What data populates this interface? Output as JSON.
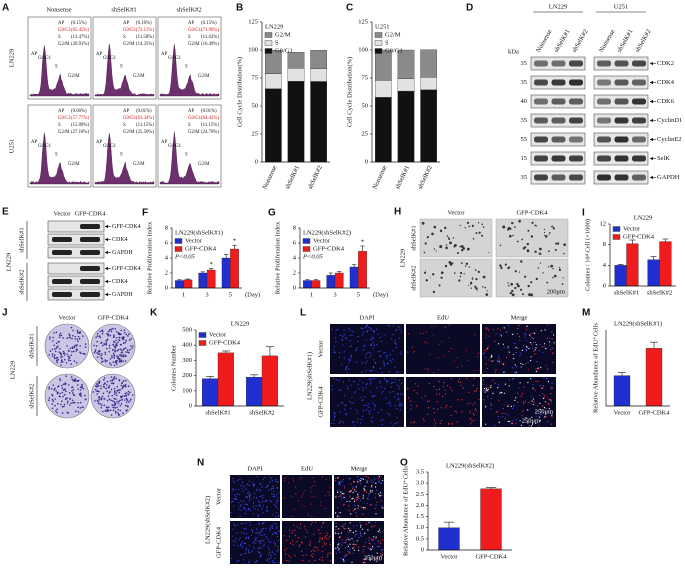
{
  "figure": {
    "A": {
      "letter": "A",
      "columns": [
        "Nonsense",
        "shSelK#1",
        "shSelK#2"
      ],
      "rows": [
        "LN229",
        "U251"
      ],
      "cells": [
        [
          [
            [
              "AP",
              "(0.15%)"
            ],
            [
              "G0/G1",
              "(65.45%)"
            ],
            [
              "S",
              "(13.47%)"
            ],
            [
              "G2/M",
              "(20.91%)"
            ]
          ],
          [
            [
              "AP",
              "(0.16%)"
            ],
            [
              "G0/G1",
              "(72.11%)"
            ],
            [
              "S",
              "(11.58%)"
            ],
            [
              "G2/M",
              "(14.35%)"
            ]
          ],
          [
            [
              "AP",
              "(0.15%)"
            ],
            [
              "G0/G1",
              "(71.90%)"
            ],
            [
              "S",
              "(11.42%)"
            ],
            [
              "G2/M",
              "(16.49%)"
            ]
          ]
        ],
        [
          [
            [
              "AP",
              "(0.00%)"
            ],
            [
              "G0/G1",
              "(57.77%)"
            ],
            [
              "S",
              "(15.09%)"
            ],
            [
              "G2/M",
              "(27.18%)"
            ]
          ],
          [
            [
              "AP",
              "(0.01%)"
            ],
            [
              "G0/G1",
              "(63.34%)"
            ],
            [
              "S",
              "(11.15%)"
            ],
            [
              "G2/M",
              "(25.50%)"
            ]
          ],
          [
            [
              "AP",
              "(0.01%)"
            ],
            [
              "G0/G1",
              "(64.42%)"
            ],
            [
              "S",
              "(11.15%)"
            ],
            [
              "G2/M",
              "(24.70%)"
            ]
          ]
        ]
      ]
    },
    "D": {
      "letter": "D",
      "groups": [
        "LN229",
        "U251"
      ],
      "lanes": [
        "Nonsense",
        "shSelK#1",
        "shSelK#2"
      ],
      "unit": "kDa",
      "markers": [
        "35",
        "35",
        "40",
        "35",
        "55",
        "15",
        "35"
      ],
      "proteins": [
        "CDK2",
        "CDK4",
        "CDK6",
        "CyclinD1",
        "CyclinE2",
        "SelK",
        "GAPDH"
      ]
    },
    "E": {
      "letter": "E",
      "lanes": [
        "Vector",
        "GFP-CDK4"
      ],
      "cell_line": "LN229",
      "groups": [
        "shSelK#1",
        "shSelK#2"
      ],
      "proteins": [
        "GFP-CDK4",
        "CDK4",
        "GAPDH"
      ]
    },
    "H": {
      "letter": "H",
      "columns": [
        "Vector",
        "GFP-CDK4"
      ],
      "rows": [
        "shSelK#1",
        "shSelK#2"
      ],
      "cell_line": "LN229",
      "scale_bar": "200μm"
    },
    "J": {
      "letter": "J",
      "columns": [
        "Vector",
        "GFP-CDK4"
      ],
      "rows": [
        "shSelK#1",
        "shSelK#2"
      ],
      "cell_line": "LN229"
    },
    "L": {
      "letter": "L",
      "columns": [
        "DAPI",
        "EdU",
        "Merge"
      ],
      "rows": [
        "Vector",
        "GFP-CDK4"
      ],
      "cell_line": "LN229(shSelK#1)",
      "scale_bars": [
        "250μm",
        "250μm"
      ]
    },
    "N": {
      "letter": "N",
      "columns": [
        "DAPI",
        "EdU",
        "Merge"
      ],
      "rows": [
        "Vector",
        "GFP-CDK4"
      ],
      "cell_line": "LN229(shSelK#2)",
      "scale_bar": "250μm"
    }
  },
  "chart_data": [
    {
      "panel": "B",
      "type": "stacked_bar",
      "title": "LN229",
      "ylabel": "Cell Cycle Distribution(%)",
      "categories": [
        "Nonsense",
        "shSelK#1",
        "shSelK#2"
      ],
      "series": [
        {
          "name": "G0/G1",
          "color": "#111111",
          "values": [
            65.45,
            72.11,
            71.9
          ]
        },
        {
          "name": "S",
          "color": "#e2e2e2",
          "values": [
            13.47,
            11.58,
            11.42
          ]
        },
        {
          "name": "G2/M",
          "color": "#8a8a8a",
          "values": [
            20.91,
            14.35,
            16.49
          ]
        }
      ],
      "ylim": [
        0,
        125
      ],
      "yticks": [
        0,
        25,
        50,
        75,
        100,
        125
      ]
    },
    {
      "panel": "C",
      "type": "stacked_bar",
      "title": "U251",
      "ylabel": "Cell Cycle Distribution(%)",
      "categories": [
        "Nonsense",
        "shSelK#1",
        "shSelK#2"
      ],
      "series": [
        {
          "name": "G0/G1",
          "color": "#111111",
          "values": [
            57.77,
            63.34,
            64.42
          ]
        },
        {
          "name": "S",
          "color": "#e2e2e2",
          "values": [
            15.09,
            11.15,
            11.15
          ]
        },
        {
          "name": "G2/M",
          "color": "#8a8a8a",
          "values": [
            27.18,
            25.5,
            24.7
          ]
        }
      ],
      "ylim": [
        0,
        125
      ],
      "yticks": [
        0,
        25,
        50,
        75,
        100,
        125
      ]
    },
    {
      "panel": "F",
      "type": "bar",
      "title": "LN229(shSelK#1)",
      "ylabel": "Relative Proliferation Index",
      "xlabel": "(Day)",
      "categories": [
        "1",
        "3",
        "5"
      ],
      "series": [
        {
          "name": "Vector",
          "color": "#1f2fd0",
          "values": [
            1.0,
            2.0,
            4.0
          ],
          "errors": [
            0.1,
            0.15,
            0.5
          ]
        },
        {
          "name": "GFP-CDK4",
          "color": "#ee1c1c",
          "values": [
            1.1,
            2.4,
            5.2
          ],
          "errors": [
            0.1,
            0.2,
            0.5
          ]
        }
      ],
      "ylim": [
        0,
        8
      ],
      "yticks": [
        0,
        2,
        4,
        6,
        8
      ],
      "annotation": "P<0.05",
      "significance": [
        null,
        "*",
        "*"
      ]
    },
    {
      "panel": "G",
      "type": "bar",
      "title": "LN229(shSelK#2)",
      "ylabel": "Relative Proliferation Index",
      "xlabel": "(Day)",
      "categories": [
        "1",
        "3",
        "5"
      ],
      "series": [
        {
          "name": "Vector",
          "color": "#1f2fd0",
          "values": [
            1.0,
            1.7,
            2.8
          ],
          "errors": [
            0.1,
            0.3,
            0.3
          ]
        },
        {
          "name": "GFP-CDK4",
          "color": "#ee1c1c",
          "values": [
            1.0,
            2.0,
            4.9
          ],
          "errors": [
            0.1,
            0.2,
            0.7
          ]
        }
      ],
      "ylim": [
        0,
        8
      ],
      "yticks": [
        0,
        2,
        4,
        6,
        8
      ],
      "annotation": "P<0.05",
      "significance": [
        null,
        null,
        "*"
      ]
    },
    {
      "panel": "I",
      "type": "bar",
      "title": "LN229",
      "ylabel": "Colonies / 10⁴ Cell (×1000)",
      "categories": [
        "shSelK#1",
        "shSelK#2"
      ],
      "series": [
        {
          "name": "Vector",
          "color": "#1f2fd0",
          "values": [
            4.0,
            5.1
          ],
          "errors": [
            0.2,
            0.6
          ]
        },
        {
          "name": "GFP-CDK4",
          "color": "#ee1c1c",
          "values": [
            8.2,
            8.6
          ],
          "errors": [
            0.7,
            0.5
          ]
        }
      ],
      "ylim": [
        0,
        12
      ],
      "yticks": [
        0,
        4,
        8,
        12
      ]
    },
    {
      "panel": "K",
      "type": "bar",
      "title": "LN229",
      "ylabel": "Colonies Number",
      "categories": [
        "shSelK#1",
        "shSelK#2"
      ],
      "series": [
        {
          "name": "Vector",
          "color": "#1f2fd0",
          "values": [
            180,
            190
          ],
          "errors": [
            15,
            15
          ]
        },
        {
          "name": "GFP-CDK4",
          "color": "#ee1c1c",
          "values": [
            350,
            330
          ],
          "errors": [
            12,
            60
          ]
        }
      ],
      "ylim": [
        0,
        500
      ],
      "yticks": [
        0,
        100,
        200,
        300,
        400,
        500
      ]
    },
    {
      "panel": "M",
      "type": "bar",
      "title": "LN229(shSelK#1)",
      "ylabel": "Relative Abundance of EdU⁺Cells",
      "categories": [
        "Vector",
        "GFP-CDK4"
      ],
      "values": [
        1.0,
        1.9
      ],
      "errors": [
        0.1,
        0.2
      ],
      "colors": [
        "#1f2fd0",
        "#ee1c1c"
      ],
      "ylim": [
        0,
        2.5
      ]
    },
    {
      "panel": "O",
      "type": "bar",
      "title": "LN229(shSelK#2)",
      "ylabel": "Relative Abundance of EdU⁺Cells",
      "categories": [
        "Vector",
        "GFP-CDK4"
      ],
      "values": [
        1.0,
        2.75
      ],
      "errors": [
        0.25,
        0.06
      ],
      "colors": [
        "#1f2fd0",
        "#ee1c1c"
      ],
      "ylim": [
        0,
        3.5
      ],
      "yticks": [
        0,
        0.5,
        {
          "value": 1,
          "label": "1.0"
        },
        1.5,
        {
          "value": 2,
          "label": "2.0"
        },
        2.5,
        {
          "value": 3,
          "label": "3.0"
        },
        3.5
      ]
    }
  ]
}
